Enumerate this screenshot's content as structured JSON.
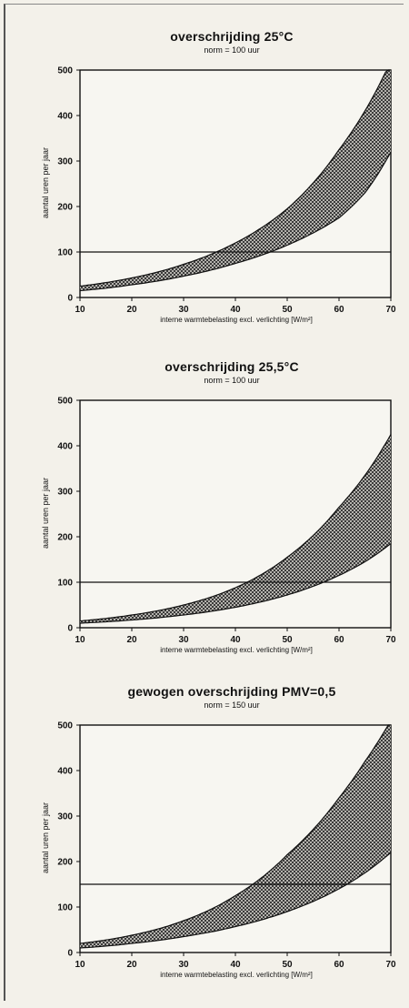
{
  "chart_data": [
    {
      "type": "area",
      "title": "overschrijding 25°C",
      "subtitle": "norm = 100 uur",
      "xlabel": "interne warmtebelasting excl. verlichting [W/m²]",
      "ylabel": "aantal uren per jaar",
      "xlim": [
        10,
        70
      ],
      "ylim": [
        0,
        500
      ],
      "xticks": [
        10,
        20,
        30,
        40,
        50,
        60,
        70
      ],
      "yticks": [
        0,
        100,
        200,
        300,
        400,
        500
      ],
      "norm_line": 100,
      "x": [
        10,
        20,
        30,
        40,
        50,
        60,
        65,
        70
      ],
      "series": [
        {
          "values": [
            25,
            43,
            73,
            120,
            195,
            325,
            410,
            520
          ]
        },
        {
          "values": [
            15,
            28,
            47,
            75,
            115,
            175,
            230,
            320
          ]
        }
      ]
    },
    {
      "type": "area",
      "title": "overschrijding 25,5°C",
      "subtitle": "norm = 100 uur",
      "xlabel": "interne warmtebelasting excl. verlichting [W/m²]",
      "ylabel": "aantal uren per jaar",
      "xlim": [
        10,
        70
      ],
      "ylim": [
        0,
        500
      ],
      "xticks": [
        10,
        20,
        30,
        40,
        50,
        60,
        70
      ],
      "yticks": [
        0,
        100,
        200,
        300,
        400,
        500
      ],
      "norm_line": 100,
      "x": [
        10,
        20,
        30,
        40,
        50,
        60,
        65,
        70
      ],
      "series": [
        {
          "values": [
            15,
            28,
            50,
            88,
            155,
            265,
            335,
            425
          ]
        },
        {
          "values": [
            10,
            17,
            28,
            45,
            72,
            115,
            145,
            185
          ]
        }
      ]
    },
    {
      "type": "area",
      "title": "gewogen overschrijding PMV=0,5",
      "subtitle": "norm = 150 uur",
      "xlabel": "interne warmtebelasting excl. verlichting [W/m²]",
      "ylabel": "aantal uren per jaar",
      "xlim": [
        10,
        70
      ],
      "ylim": [
        0,
        500
      ],
      "xticks": [
        10,
        20,
        30,
        40,
        50,
        60,
        70
      ],
      "yticks": [
        0,
        100,
        200,
        300,
        400,
        500
      ],
      "norm_line": 150,
      "x": [
        10,
        20,
        30,
        40,
        50,
        60,
        65,
        70
      ],
      "series": [
        {
          "values": [
            20,
            38,
            70,
            125,
            215,
            340,
            420,
            510
          ]
        },
        {
          "values": [
            10,
            20,
            35,
            57,
            90,
            140,
            175,
            220
          ]
        }
      ]
    }
  ]
}
